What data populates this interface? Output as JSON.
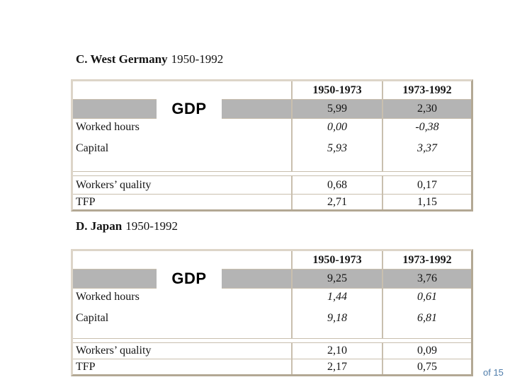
{
  "page": {
    "page_number_label": "of 15",
    "colors": {
      "highlight_gray": "#b4b4b4",
      "table_border": "#c9bfae",
      "page_number_blue": "#4f7dab"
    }
  },
  "tables": [
    {
      "name": "west-germany",
      "title_bold": "C. West Germany",
      "title_period": "1950-1992",
      "col_headers": [
        "1950-1973",
        "1973-1992"
      ],
      "gdp": {
        "label": "GDP",
        "values": [
          "5,99",
          "2,30"
        ]
      },
      "rows": [
        {
          "label": "Worked hours",
          "values": [
            "0,00",
            "-0,38"
          ]
        },
        {
          "label": "Capital",
          "values": [
            "5,93",
            "3,37"
          ]
        },
        {
          "label": "Workers’ quality",
          "values": [
            "0,68",
            "0,17"
          ]
        },
        {
          "label": "TFP",
          "values": [
            "2,71",
            "1,15"
          ]
        }
      ]
    },
    {
      "name": "japan",
      "title_bold": "D. Japan",
      "title_period": "1950-1992",
      "col_headers": [
        "1950-1973",
        "1973-1992"
      ],
      "gdp": {
        "label": "GDP",
        "values": [
          "9,25",
          "3,76"
        ]
      },
      "rows": [
        {
          "label": "Worked hours",
          "values": [
            "1,44",
            "0,61"
          ]
        },
        {
          "label": "Capital",
          "values": [
            "9,18",
            "6,81"
          ]
        },
        {
          "label": "Workers’ quality",
          "values": [
            "2,10",
            "0,09"
          ]
        },
        {
          "label": "TFP",
          "values": [
            "2,17",
            "0,75"
          ]
        }
      ]
    }
  ]
}
